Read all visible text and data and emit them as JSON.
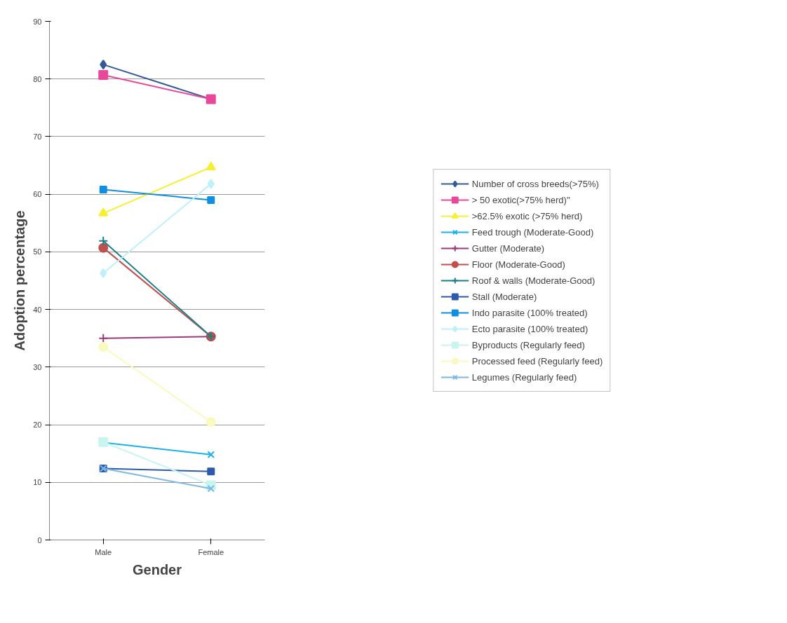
{
  "chart_data": {
    "type": "line",
    "xlabel": "Gender",
    "ylabel": "Adoption percentage",
    "categories": [
      "Male",
      "Female"
    ],
    "ylim": [
      0,
      90
    ],
    "yticks": [
      0,
      10,
      20,
      30,
      40,
      50,
      60,
      70,
      80,
      90
    ],
    "grid": "y",
    "legend": "right",
    "series": [
      {
        "name": "Number of cross breeds(>75%)",
        "color": "#335a96",
        "marker": "diamond",
        "values": [
          82.5,
          76.5
        ]
      },
      {
        "name": "> 50 exotic(>75% herd)\"",
        "color": "#e8489a",
        "marker": "square",
        "values": [
          80.7,
          76.5
        ]
      },
      {
        "name": ">62.5% exotic (>75% herd)",
        "color": "#f5f032",
        "marker": "triangle",
        "values": [
          56.7,
          64.7
        ]
      },
      {
        "name": "Feed trough (Moderate-Good)",
        "color": "#1ab2e8",
        "marker": "x",
        "values": [
          16.9,
          14.8
        ]
      },
      {
        "name": "Gutter (Moderate)",
        "color": "#9c3b7c",
        "marker": "cross",
        "values": [
          35.0,
          35.3
        ]
      },
      {
        "name": "Floor (Moderate-Good)",
        "color": "#c0504d",
        "marker": "circle",
        "values": [
          50.7,
          35.3
        ]
      },
      {
        "name": "Roof & walls (Moderate-Good)",
        "color": "#1a7f8a",
        "marker": "cross",
        "values": [
          51.9,
          35.3
        ]
      },
      {
        "name": "Stall (Moderate)",
        "color": "#2e5aac",
        "marker": "square",
        "values": [
          12.4,
          11.9
        ]
      },
      {
        "name": "Indo parasite (100% treated)",
        "color": "#0e8fe0",
        "marker": "square",
        "values": [
          60.8,
          59.0
        ]
      },
      {
        "name": "Ecto parasite (100% treated)",
        "color": "#bdf0fa",
        "marker": "diamond",
        "values": [
          46.3,
          61.8
        ]
      },
      {
        "name": "Byproducts (Regularly feed)",
        "color": "#c8f5f0",
        "marker": "square",
        "values": [
          17.0,
          9.5
        ]
      },
      {
        "name": "Processed feed (Regularly feed)",
        "color": "#fafac0",
        "marker": "circle",
        "values": [
          33.5,
          20.5
        ]
      },
      {
        "name": "Legumes (Regularly feed)",
        "color": "#7ab8e8",
        "marker": "x",
        "values": [
          12.4,
          8.9
        ]
      }
    ]
  }
}
